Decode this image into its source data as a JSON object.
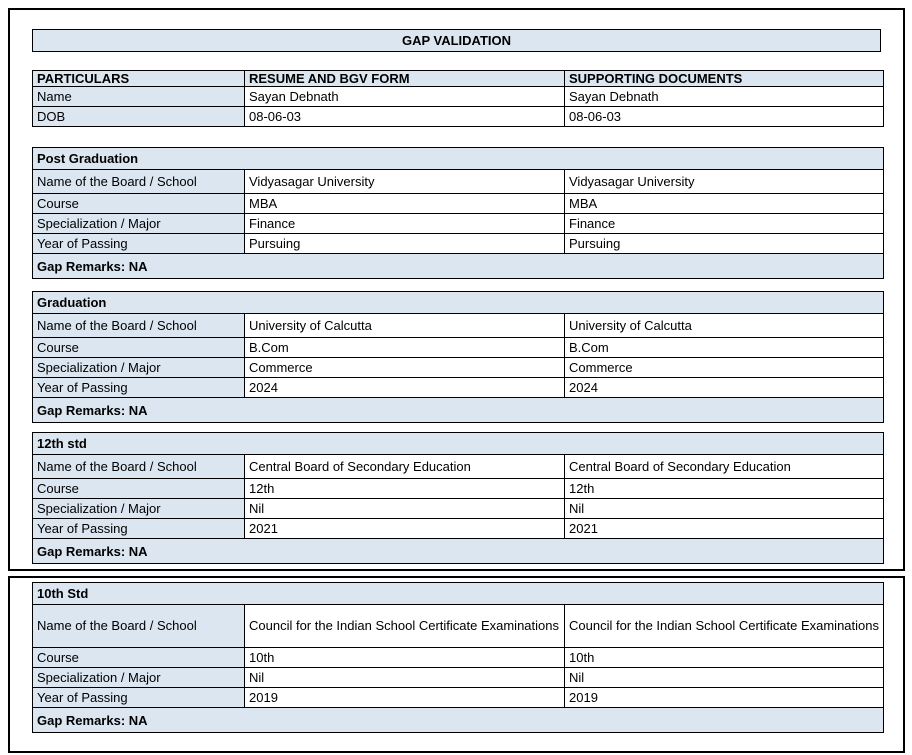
{
  "title": "GAP VALIDATION",
  "header": {
    "columns": [
      "PARTICULARS",
      "RESUME AND BGV FORM",
      "SUPPORTING DOCUMENTS"
    ]
  },
  "personal": {
    "rows": [
      {
        "label": "Name",
        "resume": "Sayan Debnath",
        "supporting": "Sayan Debnath"
      },
      {
        "label": "DOB",
        "resume": "08-06-03",
        "supporting": "08-06-03"
      }
    ]
  },
  "sections": [
    {
      "title": "Post Graduation",
      "rows": [
        {
          "label": "Name of the Board / School",
          "resume": "Vidyasagar University",
          "supporting": "Vidyasagar University"
        },
        {
          "label": "Course",
          "resume": "MBA",
          "supporting": "MBA"
        },
        {
          "label": "Specialization / Major",
          "resume": "Finance",
          "supporting": "Finance"
        },
        {
          "label": "Year of Passing",
          "resume": "Pursuing",
          "supporting": "Pursuing"
        }
      ],
      "gap_remarks": "Gap Remarks: NA"
    },
    {
      "title": "Graduation",
      "rows": [
        {
          "label": "Name of the Board / School",
          "resume": "University of Calcutta",
          "supporting": "University of Calcutta"
        },
        {
          "label": "Course",
          "resume": "B.Com",
          "supporting": "B.Com"
        },
        {
          "label": "Specialization / Major",
          "resume": "Commerce",
          "supporting": "Commerce"
        },
        {
          "label": "Year of Passing",
          "resume": "2024",
          "supporting": "2024"
        }
      ],
      "gap_remarks": "Gap Remarks: NA"
    },
    {
      "title": "12th std",
      "rows": [
        {
          "label": "Name of the Board / School",
          "resume": "Central Board of Secondary Education",
          "supporting": "Central Board of Secondary Education"
        },
        {
          "label": "Course",
          "resume": "12th",
          "supporting": "12th"
        },
        {
          "label": "Specialization / Major",
          "resume": "Nil",
          "supporting": "Nil"
        },
        {
          "label": "Year of Passing",
          "resume": "2021",
          "supporting": "2021"
        }
      ],
      "gap_remarks": "Gap Remarks: NA"
    },
    {
      "title": "10th Std",
      "rows": [
        {
          "label": "Name of the Board / School",
          "resume": "Council for the Indian School Certificate Examinations",
          "supporting": "Council for the Indian School Certificate Examinations"
        },
        {
          "label": "Course",
          "resume": "10th",
          "supporting": "10th"
        },
        {
          "label": "Specialization / Major",
          "resume": "Nil",
          "supporting": "Nil"
        },
        {
          "label": "Year of Passing",
          "resume": "2019",
          "supporting": "2019"
        }
      ],
      "gap_remarks": "Gap Remarks: NA"
    }
  ],
  "colors": {
    "header_fill": "#dce6f1",
    "grid_border": "#000000",
    "page_border": "#000000",
    "background": "#ffffff",
    "text": "#000000"
  }
}
